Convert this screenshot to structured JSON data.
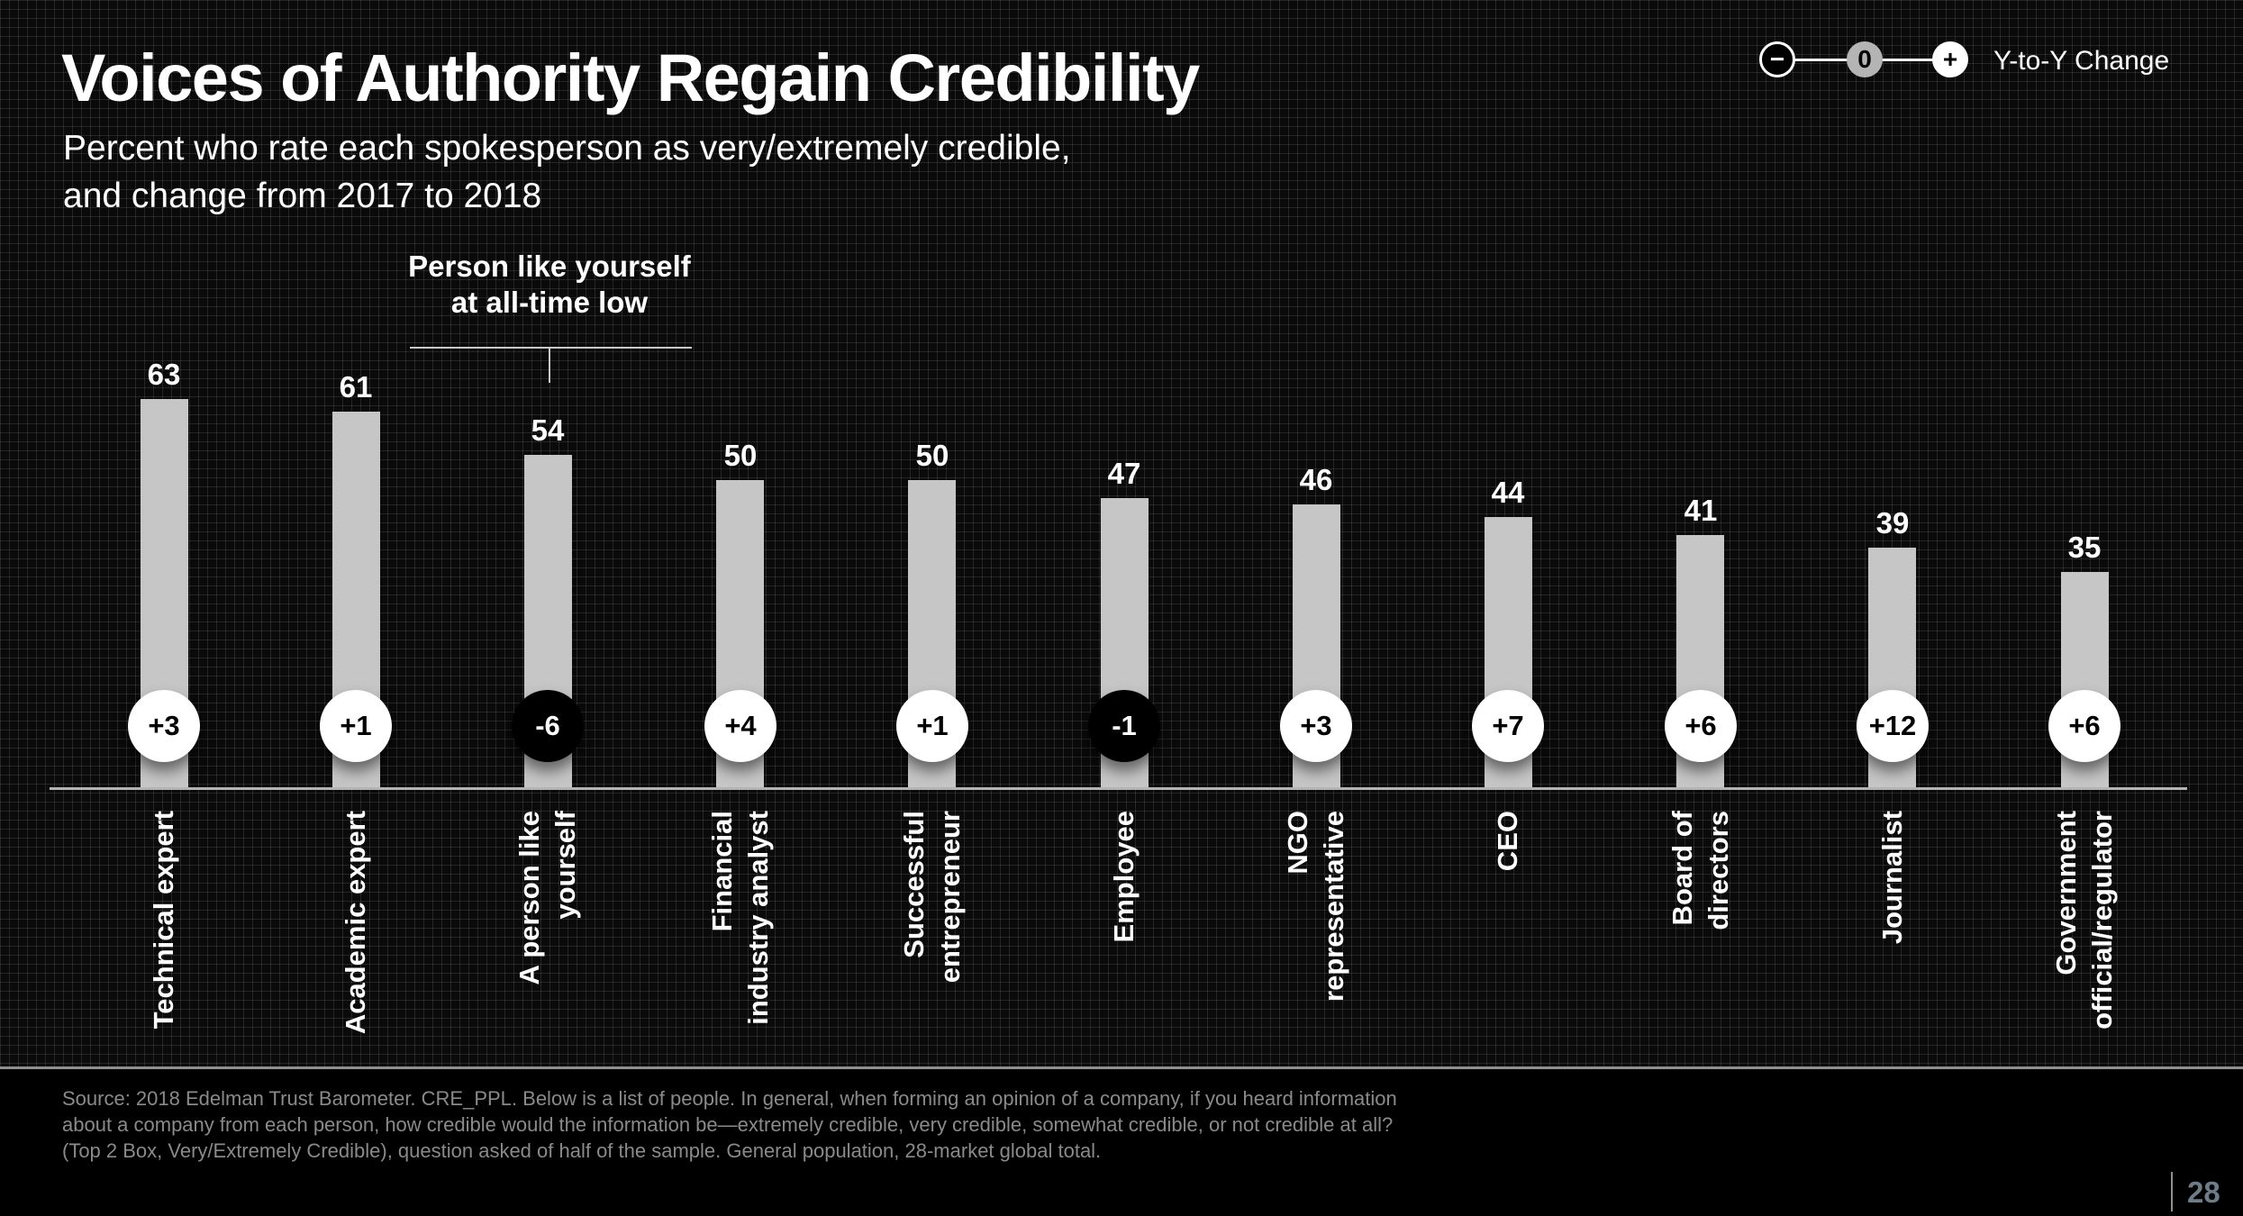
{
  "header": {
    "title": "Voices of Authority Regain Credibility",
    "subtitle": "Percent who rate each spokesperson as very/extremely credible,\nand change from 2017 to 2018"
  },
  "legend": {
    "minus_symbol": "−",
    "zero_symbol": "0",
    "plus_symbol": "+",
    "label": "Y-to-Y Change"
  },
  "annotation": {
    "text": "Person like yourself\nat all-time low",
    "target_category": "A person like yourself"
  },
  "chart_data": {
    "type": "bar",
    "title": "Voices of Authority Regain Credibility",
    "subtitle": "Percent who rate each spokesperson as very/extremely credible, and change from 2017 to 2018",
    "categories": [
      "Technical expert",
      "Academic expert",
      "A person like\nyourself",
      "Financial\nindustry analyst",
      "Successful\nentrepreneur",
      "Employee",
      "NGO\nrepresentative",
      "CEO",
      "Board of\ndirectors",
      "Journalist",
      "Government\nofficial/regulator"
    ],
    "series": [
      {
        "name": "Percent very/extremely credible, 2018",
        "values": [
          63,
          61,
          54,
          50,
          50,
          47,
          46,
          44,
          41,
          39,
          35
        ]
      },
      {
        "name": "Y-to-Y change 2017 to 2018",
        "values": [
          3,
          1,
          -6,
          4,
          1,
          -1,
          3,
          7,
          6,
          12,
          6
        ]
      }
    ],
    "change_labels": [
      "+3",
      "+1",
      "-6",
      "+4",
      "+1",
      "-1",
      "+3",
      "+7",
      "+6",
      "+12",
      "+6"
    ],
    "ylim": [
      0,
      70
    ],
    "grid": "off",
    "legend_position": "top-right"
  },
  "colors": {
    "bar": "#c6c6c6",
    "positive_change_bg": "#ffffff",
    "positive_change_text": "#000000",
    "negative_change_bg": "#000000",
    "negative_change_text": "#ffffff",
    "axis": "#b3b3b3",
    "muted_text": "#8a8a8a",
    "page_number": "#6e7c89"
  },
  "footer": {
    "source": "Source: 2018 Edelman Trust Barometer. CRE_PPL. Below is a list of people. In general, when forming an opinion of a company, if you heard information\nabout a company from each person, how credible would the information be—extremely credible, very credible, somewhat credible, or not credible at all?\n(Top 2 Box, Very/Extremely Credible), question asked of half of the sample. General population, 28-market global total.",
    "page_number": "28"
  }
}
